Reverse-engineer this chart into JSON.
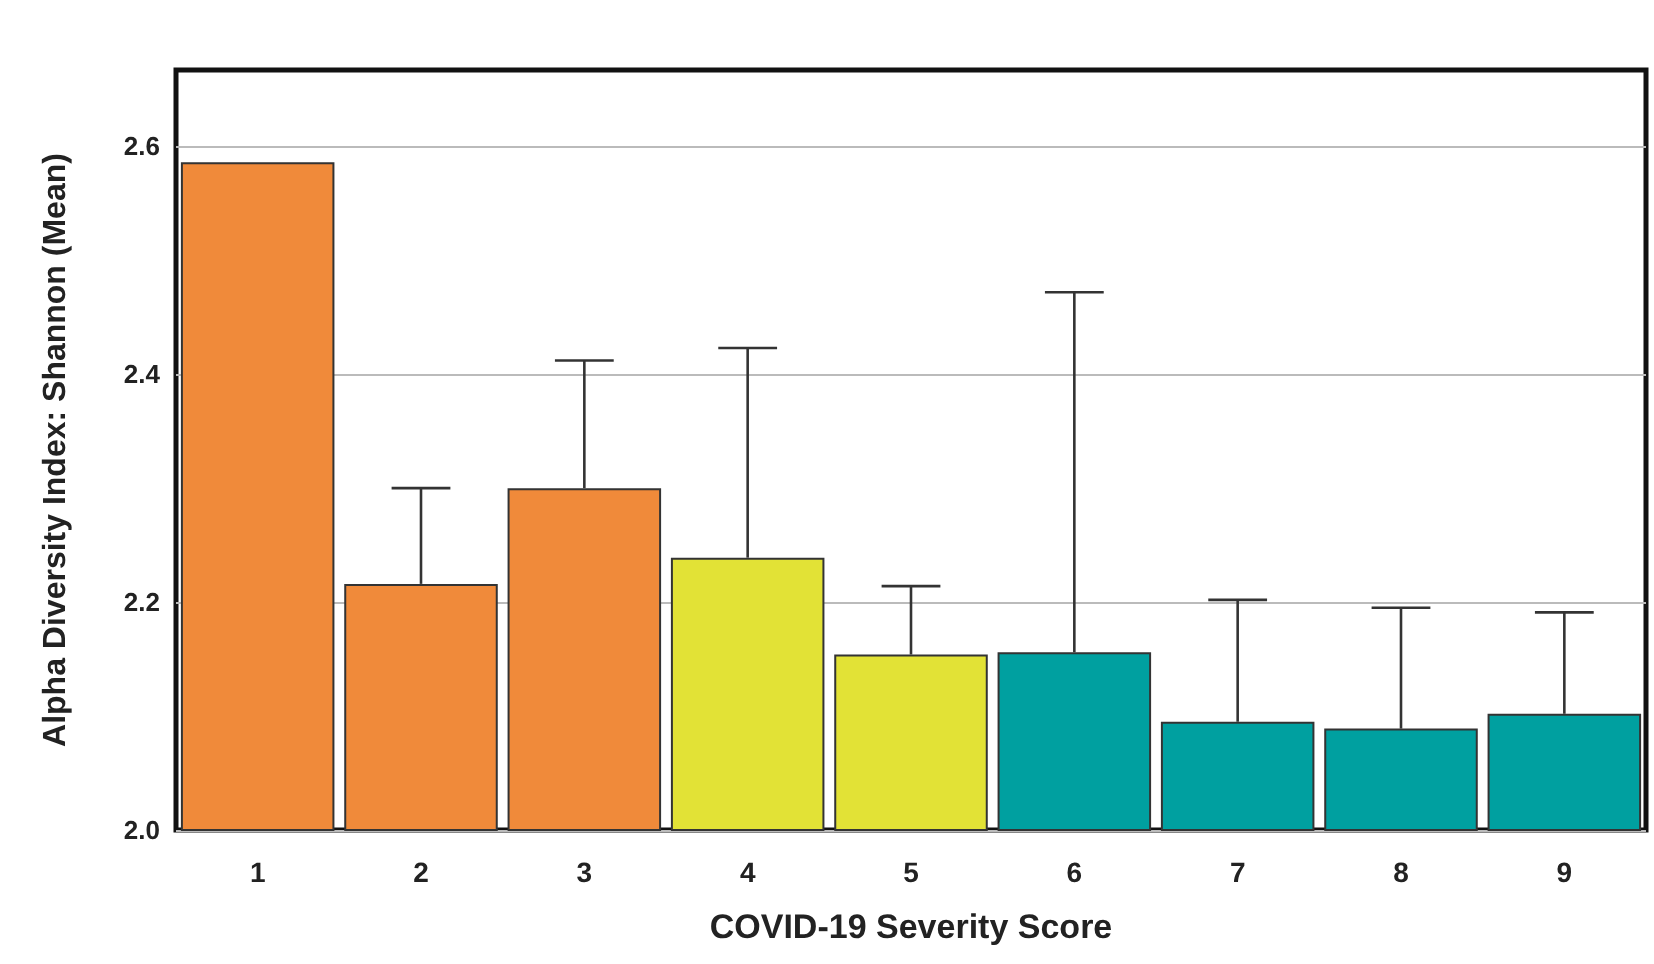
{
  "chart_data": {
    "type": "bar",
    "xlabel": "COVID-19 Severity Score",
    "ylabel": "Alpha Diversity Index: Shannon (Mean)",
    "categories": [
      "1",
      "2",
      "3",
      "4",
      "5",
      "6",
      "7",
      "8",
      "9"
    ],
    "values": [
      2.586,
      2.216,
      2.3,
      2.239,
      2.154,
      2.156,
      2.095,
      2.089,
      2.102
    ],
    "colors": [
      "#f08a3a",
      "#f08a3a",
      "#f08a3a",
      "#e2e236",
      "#e2e236",
      "#00a0a0",
      "#00a0a0",
      "#00a0a0",
      "#00a0a0"
    ],
    "errors": [
      null,
      [
        2.216,
        2.3
      ],
      [
        2.3,
        2.412
      ],
      [
        2.239,
        2.423
      ],
      [
        2.154,
        2.214
      ],
      [
        2.156,
        2.472
      ],
      [
        2.095,
        2.202
      ],
      [
        2.089,
        2.195
      ],
      [
        2.102,
        2.191
      ]
    ],
    "ylim": [
      2.0,
      2.667
    ],
    "yticks": [
      {
        "value": 2.0,
        "label": "2.0"
      },
      {
        "value": 2.2,
        "label": "2.2"
      },
      {
        "value": 2.4,
        "label": "2.4"
      },
      {
        "value": 2.6,
        "label": "2.6"
      }
    ],
    "grid": "y"
  }
}
